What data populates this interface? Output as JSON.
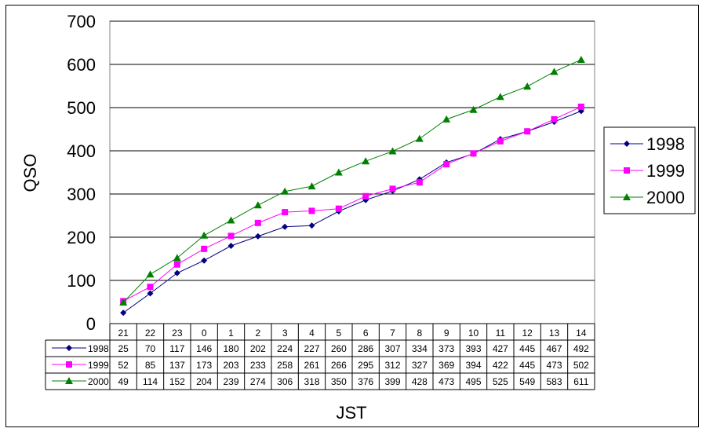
{
  "chart_data": {
    "type": "line",
    "title": "",
    "xlabel": "JST",
    "ylabel": "QSO",
    "ylim": [
      0,
      700
    ],
    "yticks": [
      0,
      100,
      200,
      300,
      400,
      500,
      600,
      700
    ],
    "grid": true,
    "legend_position": "right",
    "categories": [
      "21",
      "22",
      "23",
      "0",
      "1",
      "2",
      "3",
      "4",
      "5",
      "6",
      "7",
      "8",
      "9",
      "10",
      "11",
      "12",
      "13",
      "14"
    ],
    "series": [
      {
        "name": "1998",
        "color": "#000080",
        "marker": "diamond",
        "values": [
          25,
          70,
          117,
          146,
          180,
          202,
          224,
          227,
          260,
          286,
          307,
          334,
          373,
          393,
          427,
          445,
          467,
          492
        ]
      },
      {
        "name": "1999",
        "color": "#ff00ff",
        "marker": "square",
        "values": [
          52,
          85,
          137,
          173,
          203,
          233,
          258,
          261,
          266,
          295,
          312,
          327,
          369,
          394,
          422,
          445,
          473,
          502
        ]
      },
      {
        "name": "2000",
        "color": "#008000",
        "marker": "triangle",
        "values": [
          49,
          114,
          152,
          204,
          239,
          274,
          306,
          318,
          350,
          376,
          399,
          428,
          473,
          495,
          525,
          549,
          583,
          611
        ]
      }
    ],
    "data_table": true
  }
}
